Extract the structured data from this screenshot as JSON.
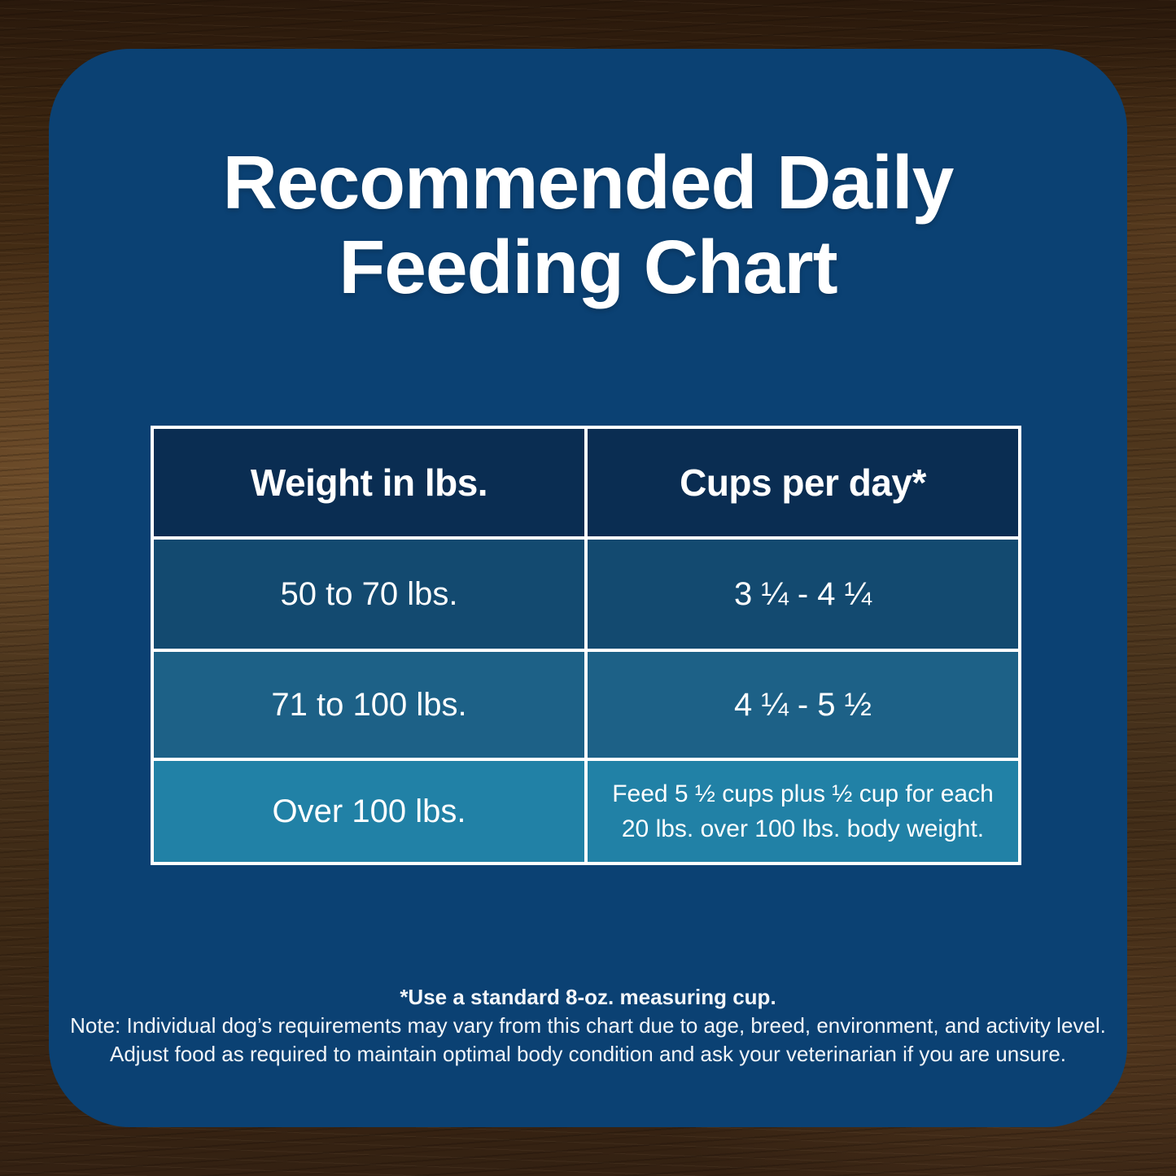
{
  "title": {
    "line1": "Recommended Daily",
    "line2": "Feeding Chart"
  },
  "table": {
    "headers": [
      "Weight in lbs.",
      "Cups per day*"
    ],
    "rows": [
      {
        "weight": "50 to 70 lbs.",
        "cups": "3 ¼ - 4 ¼"
      },
      {
        "weight": "71 to 100 lbs.",
        "cups": "4 ¼ - 5 ½"
      },
      {
        "weight": "Over 100 lbs.",
        "cups": "Feed 5 ½ cups plus ½ cup for each 20 lbs. over 100 lbs. body weight."
      }
    ]
  },
  "footnotes": {
    "cup": "*Use a standard 8-oz. measuring cup.",
    "note1": "Note: Individual dog’s requirements may vary from this chart due to age, breed, environment, and activity level.",
    "note2": "Adjust food as required to maintain optimal body condition and ask your veterinarian if you are unsure."
  },
  "colors": {
    "card_background": "#0b4173",
    "table_header_background": "#0a2d52",
    "row1_background": "#134a70",
    "row2_background": "#1d6187",
    "row3_background": "#2181a6",
    "table_border": "#ffffff",
    "text": "#ffffff",
    "wood_background_base": "#46311b"
  },
  "chart_data": {
    "type": "table",
    "title": "Recommended Daily Feeding Chart",
    "columns": [
      "Weight in lbs.",
      "Cups per day*"
    ],
    "rows": [
      [
        "50 to 70 lbs.",
        "3 ¼ - 4 ¼"
      ],
      [
        "71 to 100 lbs.",
        "4 ¼ - 5 ½"
      ],
      [
        "Over 100 lbs.",
        "Feed 5 ½ cups plus ½ cup for each 20 lbs. over 100 lbs. body weight."
      ]
    ],
    "notes": [
      "*Use a standard 8-oz. measuring cup.",
      "Note: Individual dog’s requirements may vary from this chart due to age, breed, environment, and activity level.",
      "Adjust food as required to maintain optimal body condition and ask your veterinarian if you are unsure."
    ]
  }
}
